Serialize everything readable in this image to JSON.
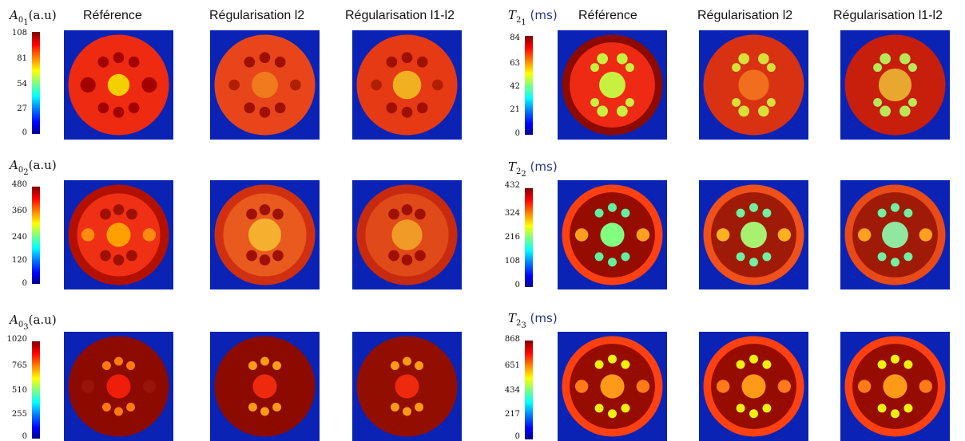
{
  "left_group": {
    "columns": [
      "Référence",
      "Régularisation l2",
      "Régularisation l1-l2"
    ],
    "rows": [
      {
        "var": "A",
        "sub": "0",
        "subsub": "1",
        "unit": "(a.u)",
        "ticks": [
          "108",
          "81",
          "54",
          "27",
          "0"
        ]
      },
      {
        "var": "A",
        "sub": "0",
        "subsub": "2",
        "unit": "(a.u)",
        "ticks": [
          "480",
          "360",
          "240",
          "120",
          "0"
        ]
      },
      {
        "var": "A",
        "sub": "0",
        "subsub": "3",
        "unit": "(a.u)",
        "ticks": [
          "1020",
          "765",
          "510",
          "255",
          "0"
        ]
      }
    ]
  },
  "right_group": {
    "columns": [
      "Référence",
      "Régularisation l2",
      "Régularisation l1-l2"
    ],
    "rows": [
      {
        "var": "T",
        "sub": "2",
        "subsub": "1",
        "unit": "(ms)",
        "ticks": [
          "84",
          "63",
          "42",
          "21",
          "0"
        ]
      },
      {
        "var": "T",
        "sub": "2",
        "subsub": "2",
        "unit": "(ms)",
        "ticks": [
          "432",
          "324",
          "216",
          "108",
          "0"
        ]
      },
      {
        "var": "T",
        "sub": "2",
        "subsub": "3",
        "unit": "(ms)",
        "ticks": [
          "868",
          "651",
          "434",
          "217",
          "0"
        ]
      }
    ]
  },
  "colors": {
    "background_blue": "#0a23b4",
    "colormap": "jet"
  }
}
